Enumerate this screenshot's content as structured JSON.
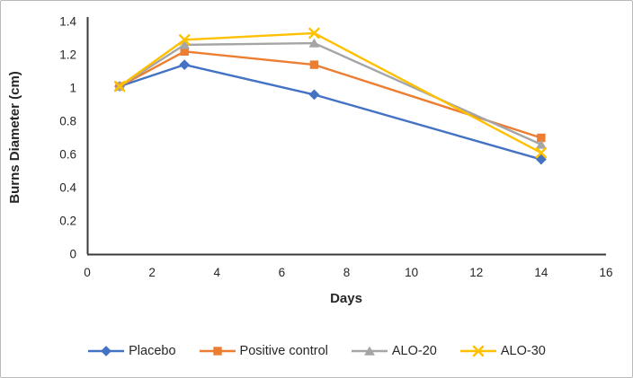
{
  "chart_data": {
    "type": "line",
    "title": "",
    "xlabel": "Days",
    "ylabel": "Burns Diameter (cm)",
    "x": [
      1,
      3,
      7,
      14
    ],
    "xlim": [
      0,
      16
    ],
    "xtick_step": 2,
    "ylim": [
      0,
      1.4
    ],
    "ytick_step": 0.2,
    "grid": false,
    "legend_position": "bottom",
    "axis_color": "#3a3a3a",
    "tick_label_color": "#262626",
    "series": [
      {
        "name": "Placebo",
        "color": "#4472C4",
        "marker": "diamond",
        "values": [
          1.01,
          1.14,
          0.96,
          0.57
        ]
      },
      {
        "name": "Positive control",
        "color": "#ED7D31",
        "marker": "square",
        "values": [
          1.01,
          1.22,
          1.14,
          0.7
        ]
      },
      {
        "name": "ALO-20",
        "color": "#A5A5A5",
        "marker": "triangle",
        "values": [
          1.01,
          1.26,
          1.27,
          0.66
        ]
      },
      {
        "name": "ALO-30",
        "color": "#FFC000",
        "marker": "x",
        "values": [
          1.01,
          1.29,
          1.33,
          0.61
        ]
      }
    ]
  }
}
